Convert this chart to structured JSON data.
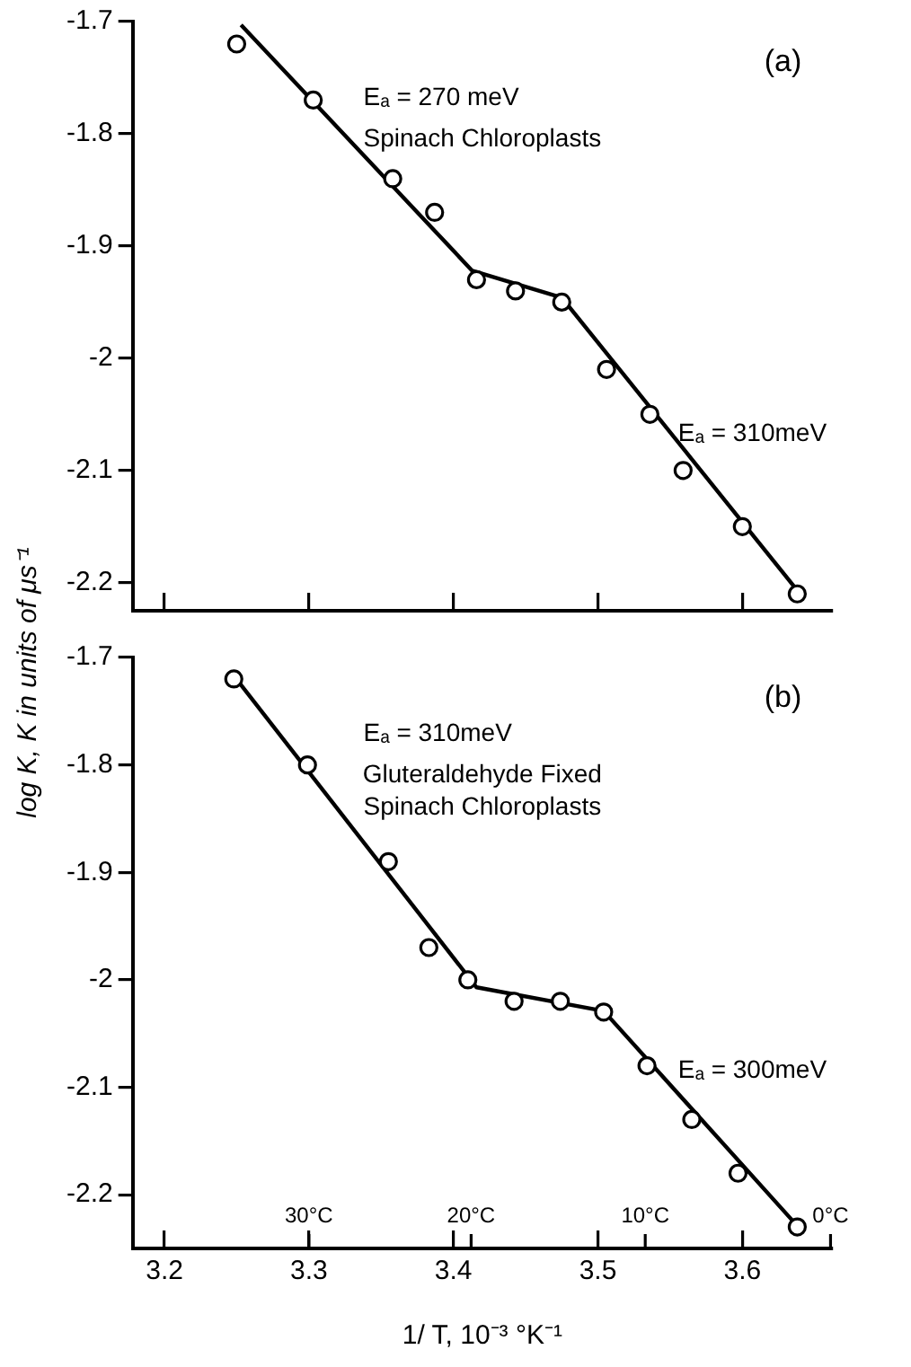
{
  "chart_data": [
    {
      "type": "scatter",
      "ylabel": "log K, K in units of μs⁻¹",
      "xlim": [
        3.178,
        3.662
      ],
      "xticks": [
        3.2,
        3.3,
        3.4,
        3.5,
        3.6
      ],
      "ylim": [
        -2.225,
        -1.7
      ],
      "yticks": [
        -1.7,
        -1.8,
        -1.9,
        -2.0,
        -2.1,
        -2.2
      ],
      "tick_labels": "y",
      "grid": false,
      "legend": false,
      "series": [
        {
          "marker": "circle",
          "color": "#000000",
          "x": [
            3.25,
            3.303,
            3.358,
            3.387,
            3.416,
            3.443,
            3.475,
            3.506,
            3.536,
            3.559,
            3.6,
            3.638
          ],
          "values": [
            -1.72,
            -1.77,
            -1.84,
            -1.87,
            -1.93,
            -1.94,
            -1.95,
            -2.01,
            -2.05,
            -2.1,
            -2.15,
            -2.21
          ]
        },
        {
          "type": "line",
          "marker": "none",
          "color": "#000000",
          "x": [
            3.253,
            3.413,
            3.475,
            3.64
          ],
          "values": [
            -1.703,
            -1.922,
            -1.946,
            -2.21
          ]
        }
      ],
      "annotations": [
        "(a)",
        "Spinach Chloroplasts",
        "Eₐ = 270 meV",
        "Eₐ = 310meV"
      ]
    },
    {
      "type": "scatter",
      "xlabel": "1/ T, 10⁻³ °K⁻¹",
      "xlim": [
        3.178,
        3.662
      ],
      "xticks": [
        3.2,
        3.3,
        3.4,
        3.5,
        3.6
      ],
      "ylim": [
        -2.25,
        -1.7
      ],
      "yticks": [
        -1.7,
        -1.8,
        -1.9,
        -2.0,
        -2.1,
        -2.2
      ],
      "grid": false,
      "legend": false,
      "series": [
        {
          "marker": "circle",
          "color": "#000000",
          "x": [
            3.248,
            3.299,
            3.355,
            3.383,
            3.41,
            3.442,
            3.474,
            3.504,
            3.534,
            3.565,
            3.597,
            3.638
          ],
          "values": [
            -1.72,
            -1.8,
            -1.89,
            -1.97,
            -2.0,
            -2.02,
            -2.02,
            -2.03,
            -2.08,
            -2.13,
            -2.18,
            -2.23
          ]
        },
        {
          "type": "line",
          "marker": "none",
          "color": "#000000",
          "x": [
            3.248,
            3.416,
            3.504,
            3.638
          ],
          "values": [
            -1.717,
            -2.007,
            -2.029,
            -2.229
          ]
        }
      ],
      "annotations": [
        "(b)",
        "Gluteraldehyde Fixed Spinach Chloroplasts",
        "Eₐ = 310meV",
        "Eₐ = 300meV",
        "30°C",
        "20°C",
        "10°C",
        "0°C"
      ]
    }
  ]
}
